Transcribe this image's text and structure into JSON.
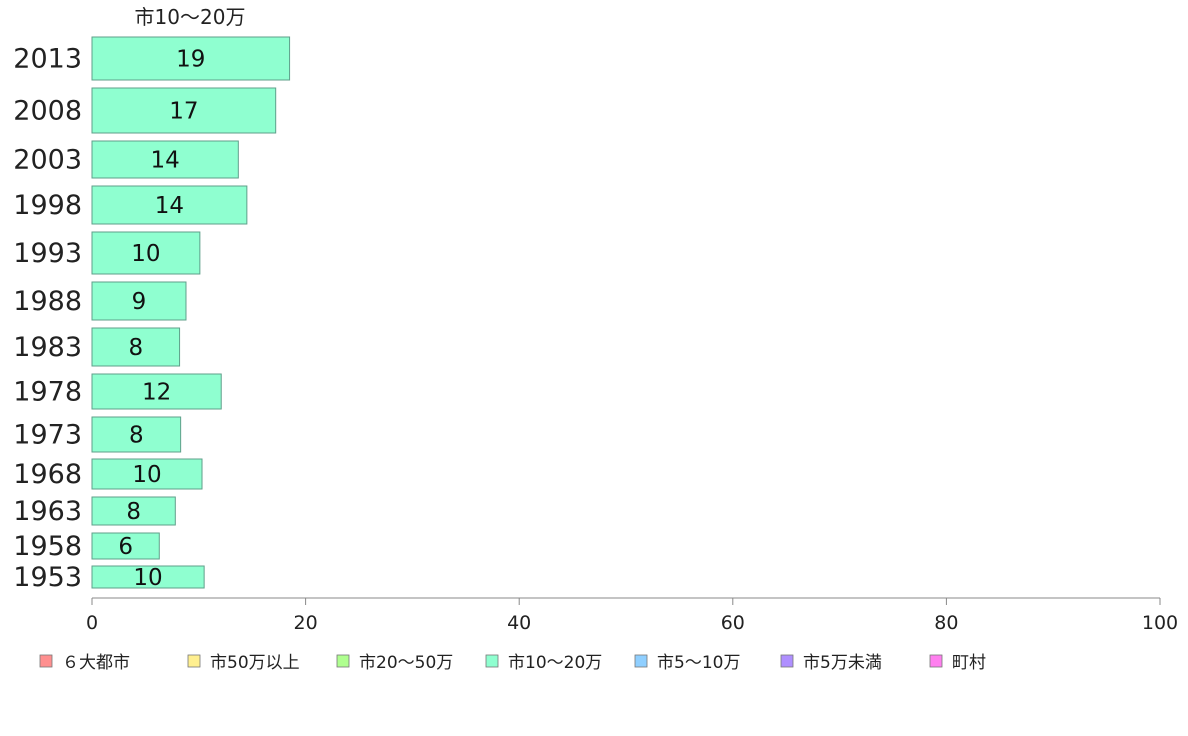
{
  "chart_data": {
    "type": "bar",
    "orientation": "horizontal",
    "series_title": "市10〜20万",
    "categories": [
      "2013",
      "2008",
      "2003",
      "1998",
      "1993",
      "1988",
      "1983",
      "1978",
      "1973",
      "1968",
      "1963",
      "1958",
      "1953"
    ],
    "values": [
      19,
      17,
      14,
      14,
      10,
      9,
      8,
      12,
      8,
      10,
      8,
      6,
      10
    ],
    "bar_lengths": [
      18.5,
      17.2,
      13.7,
      14.5,
      10.1,
      8.8,
      8.2,
      12.1,
      8.3,
      10.3,
      7.8,
      6.3,
      10.5
    ],
    "xlim": [
      0,
      100
    ],
    "xticks": [
      "0",
      "20",
      "40",
      "60",
      "80",
      "100"
    ],
    "bar_color": "#8fffd0",
    "legend": [
      {
        "label": "６大都市",
        "color": "#ff8f8f"
      },
      {
        "label": "市50万以上",
        "color": "#ffef8f"
      },
      {
        "label": "市20〜50万",
        "color": "#afff8f"
      },
      {
        "label": "市10〜20万",
        "color": "#8fffd0"
      },
      {
        "label": "市5〜10万",
        "color": "#8fcfff"
      },
      {
        "label": "市5万未満",
        "color": "#af8fff"
      },
      {
        "label": "町村",
        "color": "#ff7fef"
      }
    ],
    "legend_position": "bottom",
    "grid": false
  }
}
